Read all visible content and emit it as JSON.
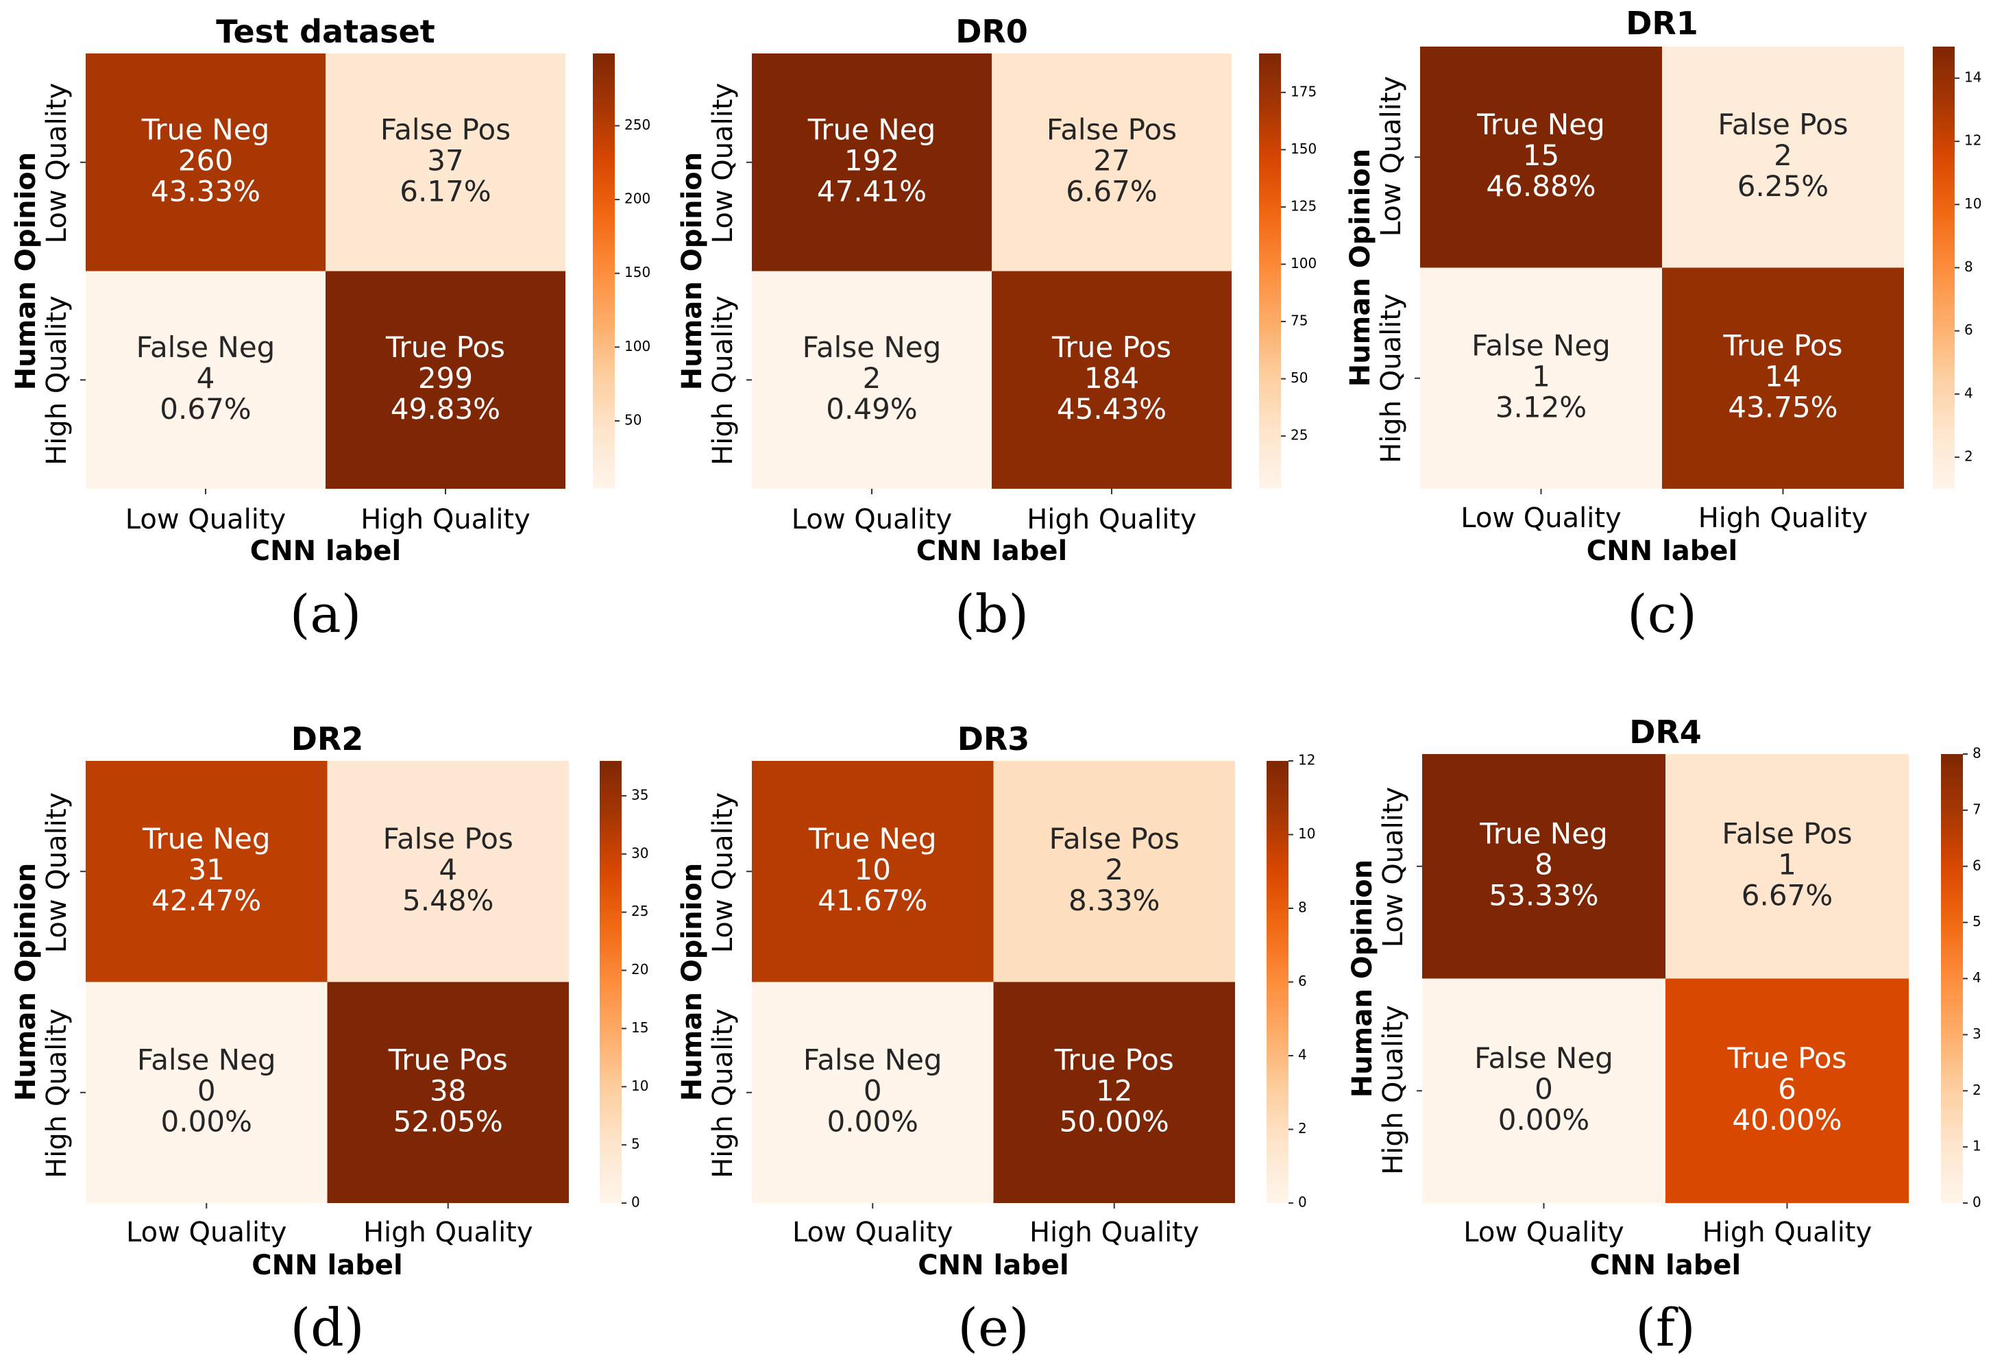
{
  "chart_data": [
    {
      "type": "heatmap",
      "panel": "(a)",
      "title": "Test dataset",
      "xlabel": "CNN label",
      "ylabel": "Human Opinion",
      "x_categories": [
        "Low Quality",
        "High Quality"
      ],
      "y_categories": [
        "Low Quality",
        "High Quality"
      ],
      "cells": [
        [
          {
            "name": "True Neg",
            "count": "260",
            "percent": "43.33%"
          },
          {
            "name": "False Pos",
            "count": "37",
            "percent": "6.17%"
          }
        ],
        [
          {
            "name": "False Neg",
            "count": "4",
            "percent": "0.67%"
          },
          {
            "name": "True Pos",
            "count": "299",
            "percent": "49.83%"
          }
        ]
      ],
      "values": [
        [
          260,
          37
        ],
        [
          4,
          299
        ]
      ],
      "color_range": [
        4,
        299
      ],
      "colorbar_ticks": [
        "50",
        "100",
        "150",
        "200",
        "250"
      ]
    },
    {
      "type": "heatmap",
      "panel": "(b)",
      "title": "DR0",
      "xlabel": "CNN label",
      "ylabel": "Human Opinion",
      "x_categories": [
        "Low Quality",
        "High Quality"
      ],
      "y_categories": [
        "Low Quality",
        "High Quality"
      ],
      "cells": [
        [
          {
            "name": "True Neg",
            "count": "192",
            "percent": "47.41%"
          },
          {
            "name": "False Pos",
            "count": "27",
            "percent": "6.67%"
          }
        ],
        [
          {
            "name": "False Neg",
            "count": "2",
            "percent": "0.49%"
          },
          {
            "name": "True Pos",
            "count": "184",
            "percent": "45.43%"
          }
        ]
      ],
      "values": [
        [
          192,
          27
        ],
        [
          2,
          184
        ]
      ],
      "color_range": [
        2,
        192
      ],
      "colorbar_ticks": [
        "25",
        "50",
        "75",
        "100",
        "125",
        "150",
        "175"
      ]
    },
    {
      "type": "heatmap",
      "panel": "(c)",
      "title": "DR1",
      "xlabel": "CNN label",
      "ylabel": "Human Opinion",
      "x_categories": [
        "Low Quality",
        "High Quality"
      ],
      "y_categories": [
        "Low Quality",
        "High Quality"
      ],
      "cells": [
        [
          {
            "name": "True Neg",
            "count": "15",
            "percent": "46.88%"
          },
          {
            "name": "False Pos",
            "count": "2",
            "percent": "6.25%"
          }
        ],
        [
          {
            "name": "False Neg",
            "count": "1",
            "percent": "3.12%"
          },
          {
            "name": "True Pos",
            "count": "14",
            "percent": "43.75%"
          }
        ]
      ],
      "values": [
        [
          15,
          2
        ],
        [
          1,
          14
        ]
      ],
      "color_range": [
        1,
        15
      ],
      "colorbar_ticks": [
        "2",
        "4",
        "6",
        "8",
        "10",
        "12",
        "14"
      ]
    },
    {
      "type": "heatmap",
      "panel": "(d)",
      "title": "DR2",
      "xlabel": "CNN label",
      "ylabel": "Human Opinion",
      "x_categories": [
        "Low Quality",
        "High Quality"
      ],
      "y_categories": [
        "Low Quality",
        "High Quality"
      ],
      "cells": [
        [
          {
            "name": "True Neg",
            "count": "31",
            "percent": "42.47%"
          },
          {
            "name": "False Pos",
            "count": "4",
            "percent": "5.48%"
          }
        ],
        [
          {
            "name": "False Neg",
            "count": "0",
            "percent": "0.00%"
          },
          {
            "name": "True Pos",
            "count": "38",
            "percent": "52.05%"
          }
        ]
      ],
      "values": [
        [
          31,
          4
        ],
        [
          0,
          38
        ]
      ],
      "color_range": [
        0,
        38
      ],
      "colorbar_ticks": [
        "0",
        "5",
        "10",
        "15",
        "20",
        "25",
        "30",
        "35"
      ]
    },
    {
      "type": "heatmap",
      "panel": "(e)",
      "title": "DR3",
      "xlabel": "CNN label",
      "ylabel": "Human Opinion",
      "x_categories": [
        "Low Quality",
        "High Quality"
      ],
      "y_categories": [
        "Low Quality",
        "High Quality"
      ],
      "cells": [
        [
          {
            "name": "True Neg",
            "count": "10",
            "percent": "41.67%"
          },
          {
            "name": "False Pos",
            "count": "2",
            "percent": "8.33%"
          }
        ],
        [
          {
            "name": "False Neg",
            "count": "0",
            "percent": "0.00%"
          },
          {
            "name": "True Pos",
            "count": "12",
            "percent": "50.00%"
          }
        ]
      ],
      "values": [
        [
          10,
          2
        ],
        [
          0,
          12
        ]
      ],
      "color_range": [
        0,
        12
      ],
      "colorbar_ticks": [
        "0",
        "2",
        "4",
        "6",
        "8",
        "10",
        "12"
      ]
    },
    {
      "type": "heatmap",
      "panel": "(f)",
      "title": "DR4",
      "xlabel": "CNN label",
      "ylabel": "Human Opinion",
      "x_categories": [
        "Low Quality",
        "High Quality"
      ],
      "y_categories": [
        "Low Quality",
        "High Quality"
      ],
      "cells": [
        [
          {
            "name": "True Neg",
            "count": "8",
            "percent": "53.33%"
          },
          {
            "name": "False Pos",
            "count": "1",
            "percent": "6.67%"
          }
        ],
        [
          {
            "name": "False Neg",
            "count": "0",
            "percent": "0.00%"
          },
          {
            "name": "True Pos",
            "count": "6",
            "percent": "40.00%"
          }
        ]
      ],
      "values": [
        [
          8,
          1
        ],
        [
          0,
          6
        ]
      ],
      "color_range": [
        0,
        8
      ],
      "colorbar_ticks": [
        "0",
        "1",
        "2",
        "3",
        "4",
        "5",
        "6",
        "7",
        "8"
      ]
    }
  ],
  "colormap": "Oranges",
  "colormap_stops": [
    "#fff5eb",
    "#fee6ce",
    "#fdd0a2",
    "#fdae6b",
    "#fd8d3c",
    "#f16913",
    "#d94801",
    "#a63603",
    "#7f2704"
  ]
}
